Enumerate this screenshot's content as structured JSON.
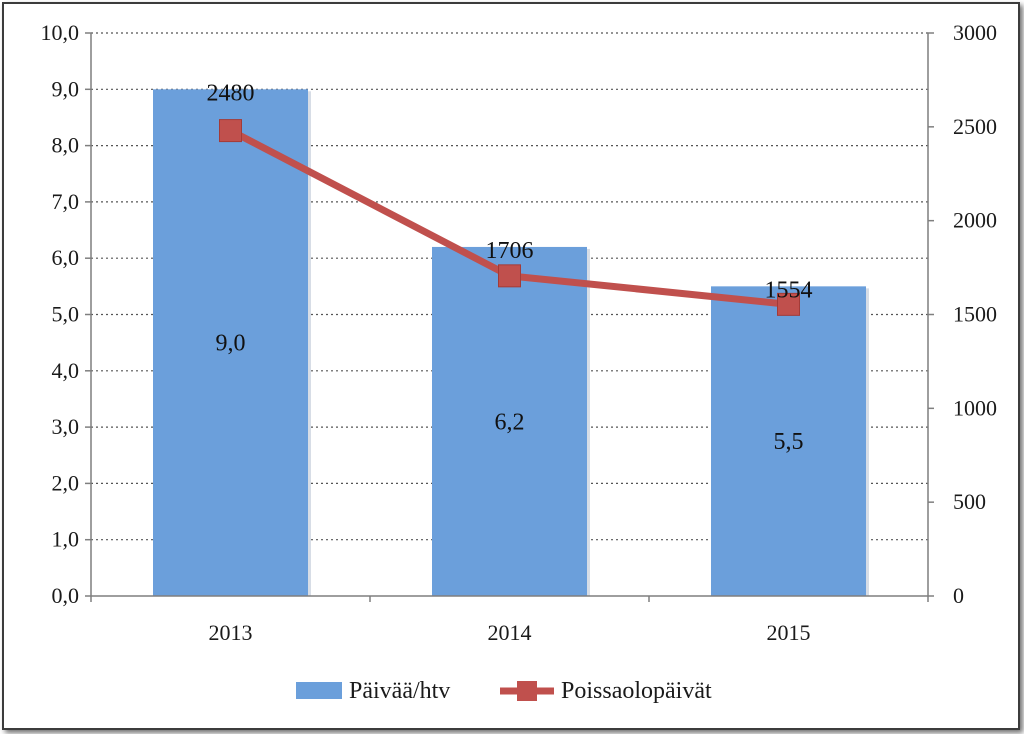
{
  "chart_data": {
    "type": "bar",
    "categories": [
      "2013",
      "2014",
      "2015"
    ],
    "series": [
      {
        "name": "Päivää/htv",
        "kind": "bar",
        "axis": "left",
        "values": [
          9.0,
          6.2,
          5.5
        ],
        "labels": [
          "9,0",
          "6,2",
          "5,5"
        ],
        "color": "#6b9fdb"
      },
      {
        "name": "Poissaolopäivät",
        "kind": "line",
        "axis": "right",
        "values": [
          2480,
          1706,
          1554
        ],
        "labels": [
          "2480",
          "1706",
          "1554"
        ],
        "color": "#c0504d"
      }
    ],
    "y_left": {
      "ylim": [
        0,
        10
      ],
      "ticks": [
        0,
        1,
        2,
        3,
        4,
        5,
        6,
        7,
        8,
        9,
        10
      ],
      "tick_labels": [
        "0,0",
        "1,0",
        "2,0",
        "3,0",
        "4,0",
        "5,0",
        "6,0",
        "7,0",
        "8,0",
        "9,0",
        "10,0"
      ]
    },
    "y_right": {
      "ylim": [
        0,
        3000
      ],
      "ticks": [
        0,
        500,
        1000,
        1500,
        2000,
        2500,
        3000
      ],
      "tick_labels": [
        "0",
        "500",
        "1000",
        "1500",
        "2000",
        "2500",
        "3000"
      ]
    },
    "grid": true,
    "legend_position": "bottom",
    "title": "",
    "xlabel": "",
    "ylabel": ""
  }
}
